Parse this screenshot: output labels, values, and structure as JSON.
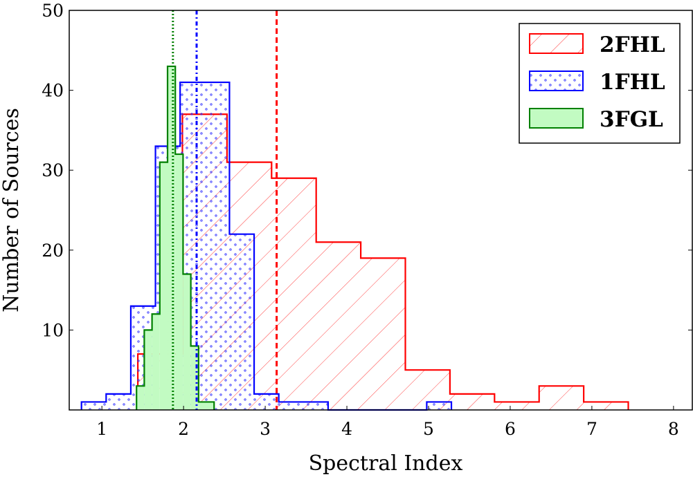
{
  "chart_data": {
    "type": "histogram",
    "xlabel": "Spectral Index",
    "ylabel": "Number of Sources",
    "xlim": [
      0.6,
      8.23
    ],
    "ylim": [
      0,
      50
    ],
    "xticks": [
      1,
      2,
      3,
      4,
      5,
      6,
      7,
      8
    ],
    "yticks": [
      10,
      20,
      30,
      40,
      50
    ],
    "grid": false,
    "legend_placement": "top-right",
    "series": [
      {
        "name": "2FHL",
        "color": "#ff0000",
        "fill": "hatch-diagonal",
        "bin_start": 1.44,
        "bin_width": 0.546,
        "counts": [
          7,
          37,
          31,
          29,
          21,
          19,
          5,
          2,
          1,
          3,
          1
        ],
        "mean": 3.14,
        "mean_line_style": "dashed"
      },
      {
        "name": "1FHL",
        "color": "#0000ff",
        "fill": "dots",
        "bin_start": 0.75,
        "bin_width": 0.302,
        "counts": [
          1,
          2,
          13,
          33,
          41,
          41,
          22,
          2,
          1,
          1,
          0,
          0,
          0,
          0,
          1
        ],
        "mean": 2.16,
        "mean_line_style": "dash-dot"
      },
      {
        "name": "3FGL",
        "color": "#008000",
        "fill": "#c2fbc2",
        "bin_start": 1.424,
        "bin_width": 0.095,
        "counts": [
          3,
          10,
          12,
          31,
          43,
          32,
          17,
          8,
          1,
          1
        ],
        "mean": 1.87,
        "mean_line_style": "dotted"
      }
    ]
  }
}
